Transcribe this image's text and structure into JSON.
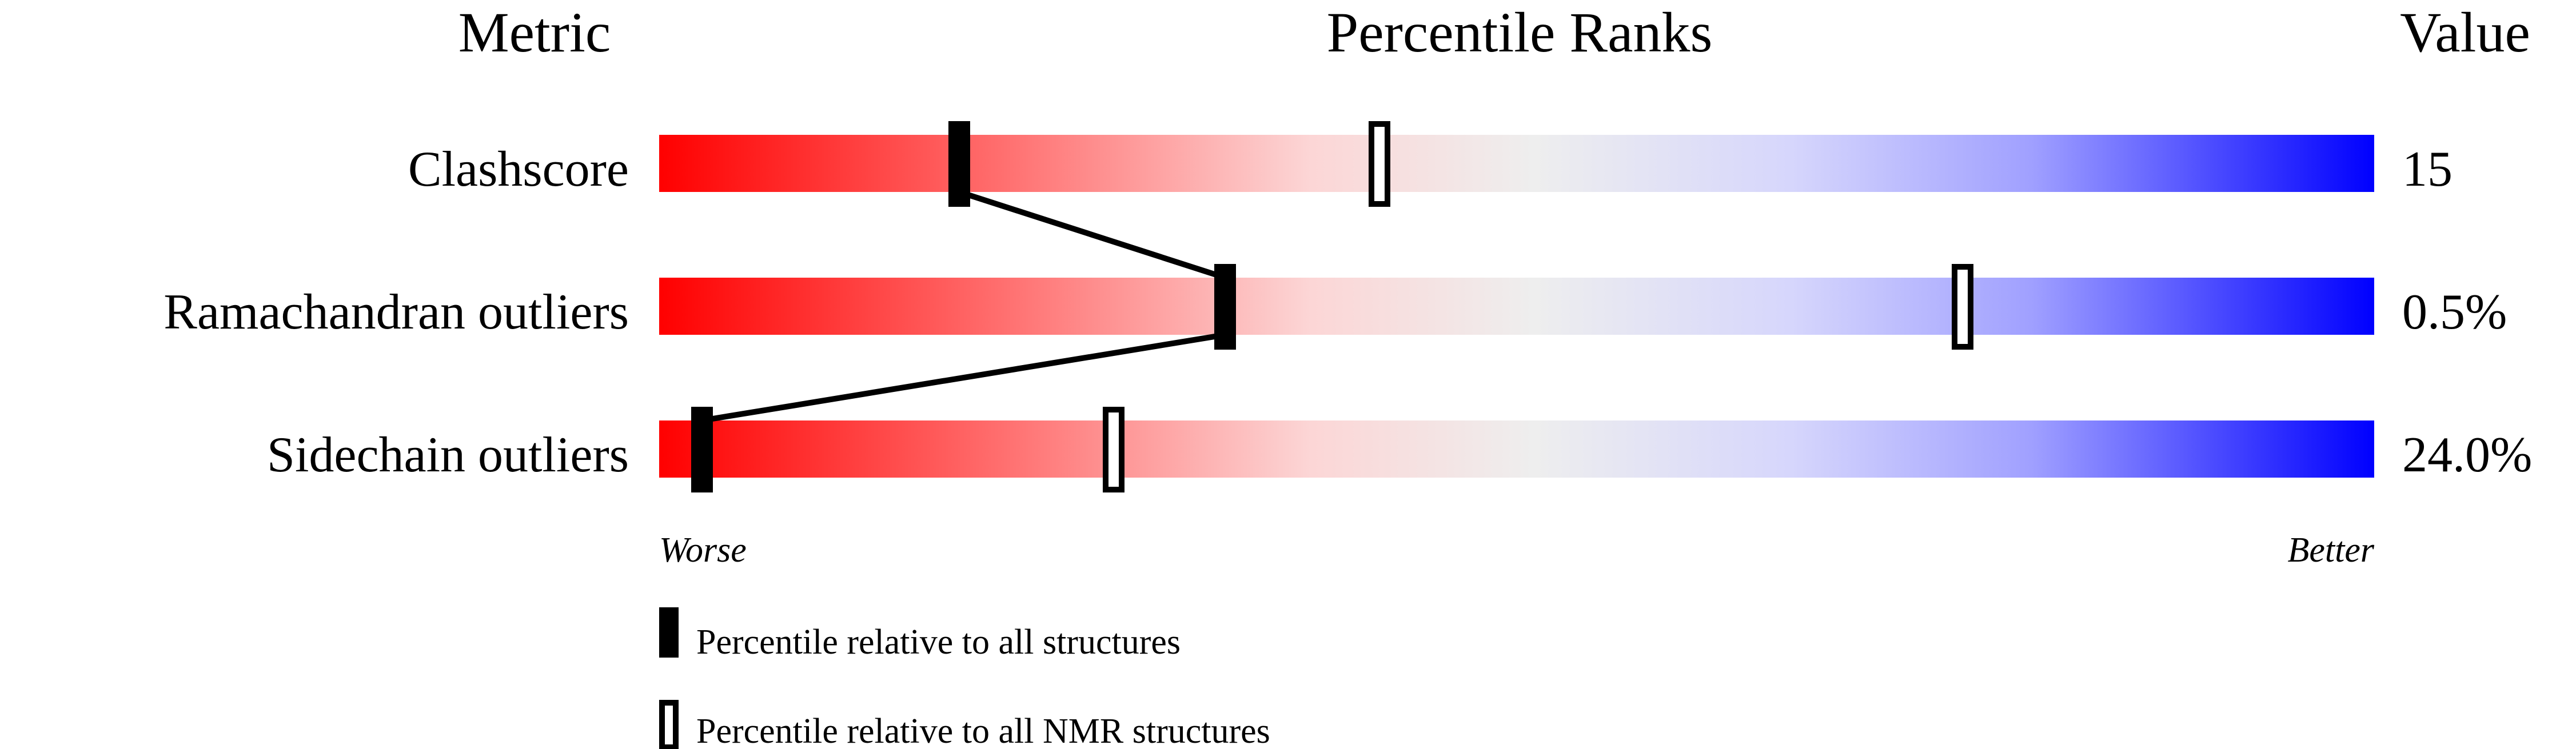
{
  "chart_data": {
    "type": "percentile-slider",
    "headers": {
      "metric": "Metric",
      "ranks": "Percentile Ranks",
      "value": "Value"
    },
    "xlim": [
      0,
      100
    ],
    "metrics": [
      {
        "label": "Clashscore",
        "value": "15",
        "percentile_all": 17.5,
        "percentile_nmr": 42
      },
      {
        "label": "Ramachandran outliers",
        "value": "0.5%",
        "percentile_all": 33,
        "percentile_nmr": 76
      },
      {
        "label": "Sidechain outliers",
        "value": "24.0%",
        "percentile_all": 2.5,
        "percentile_nmr": 26.5
      }
    ],
    "scale_left": "Worse",
    "scale_right": "Better",
    "gradient_colors": [
      "#ff0000",
      "#eeeeee",
      "#0000ff"
    ],
    "legend": [
      {
        "marker": "filled",
        "label": "Percentile relative to all structures"
      },
      {
        "marker": "open",
        "label": "Percentile relative to all NMR structures"
      }
    ]
  }
}
